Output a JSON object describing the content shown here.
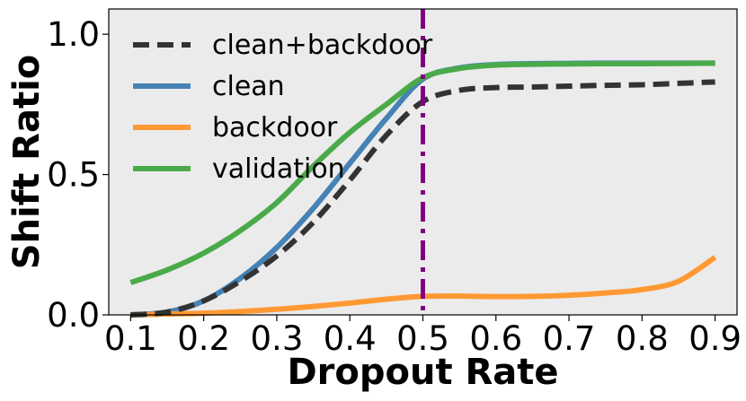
{
  "chart_data": {
    "type": "line",
    "title": "",
    "xlabel": "Dropout Rate",
    "ylabel": "Shift Ratio",
    "xlim": [
      0.07,
      0.93
    ],
    "ylim": [
      0.0,
      1.09
    ],
    "xticks": [
      0.1,
      0.2,
      0.3,
      0.4,
      0.5,
      0.6,
      0.7,
      0.8,
      0.9
    ],
    "xtick_labels": [
      "0.1",
      "0.2",
      "0.3",
      "0.4",
      "0.5",
      "0.6",
      "0.7",
      "0.8",
      "0.9"
    ],
    "yticks": [
      0.0,
      0.5,
      1.0
    ],
    "ytick_labels": [
      "0.0",
      "0.5",
      "1.0"
    ],
    "grid": false,
    "background": "#ebebeb",
    "legend_position": "upper-left",
    "vline": {
      "x": 0.5,
      "color": "#800080",
      "style": "dash-dot"
    },
    "x": [
      0.1,
      0.15,
      0.2,
      0.25,
      0.3,
      0.35,
      0.4,
      0.45,
      0.5,
      0.55,
      0.6,
      0.65,
      0.7,
      0.75,
      0.8,
      0.85,
      0.9
    ],
    "series": [
      {
        "name": "clean+backdoor",
        "color": "#333333",
        "style": "dashed",
        "values": [
          0.0,
          0.01,
          0.05,
          0.12,
          0.21,
          0.33,
          0.48,
          0.64,
          0.76,
          0.8,
          0.81,
          0.812,
          0.815,
          0.818,
          0.82,
          0.825,
          0.83
        ]
      },
      {
        "name": "clean",
        "color": "#4682b4",
        "style": "solid",
        "values": [
          0.0,
          0.01,
          0.05,
          0.13,
          0.24,
          0.38,
          0.54,
          0.7,
          0.84,
          0.88,
          0.892,
          0.895,
          0.896,
          0.897,
          0.897,
          0.897,
          0.897
        ]
      },
      {
        "name": "backdoor",
        "color": "#ff9933",
        "style": "solid",
        "values": [
          0.0,
          0.003,
          0.006,
          0.012,
          0.02,
          0.03,
          0.042,
          0.056,
          0.066,
          0.067,
          0.065,
          0.066,
          0.07,
          0.078,
          0.09,
          0.12,
          0.205
        ]
      },
      {
        "name": "validation",
        "color": "#4aaa4a",
        "style": "solid",
        "values": [
          0.115,
          0.16,
          0.22,
          0.3,
          0.4,
          0.53,
          0.65,
          0.75,
          0.845,
          0.878,
          0.89,
          0.893,
          0.894,
          0.895,
          0.895,
          0.896,
          0.897
        ]
      }
    ]
  }
}
